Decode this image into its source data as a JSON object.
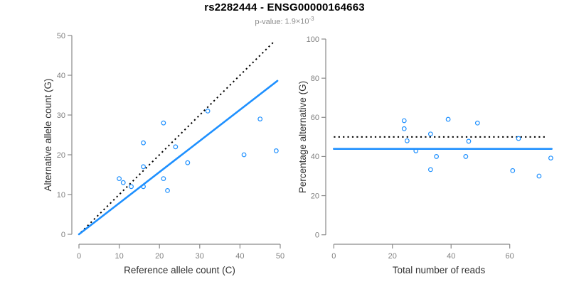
{
  "header": {
    "title": "rs2282444 - ENSG00000164663",
    "pvalue_label": "p-value:",
    "pvalue_base": "1.9×10",
    "pvalue_exponent": "-3"
  },
  "colors": {
    "accent_blue": "#1E90FF",
    "line_black": "#000000",
    "axis_gray": "#8a8a8a",
    "tick_label_gray": "#808080",
    "axis_title_color": "#333333",
    "title_color": "#000000",
    "subtitle_gray": "#8c8c8c",
    "background": "#ffffff"
  },
  "chart_data": [
    {
      "type": "scatter",
      "panel": "left",
      "xlabel": "Reference allele count (C)",
      "ylabel": "Alternative allele count (G)",
      "xlim": [
        0,
        50
      ],
      "ylim": [
        0,
        50
      ],
      "xticks": [
        0,
        10,
        20,
        30,
        40,
        50
      ],
      "yticks": [
        0,
        10,
        20,
        30,
        40,
        50
      ],
      "grid": false,
      "points": [
        [
          10,
          14
        ],
        [
          11,
          13
        ],
        [
          13,
          12
        ],
        [
          16,
          12
        ],
        [
          16,
          17
        ],
        [
          16,
          23
        ],
        [
          21,
          14
        ],
        [
          21,
          28
        ],
        [
          22,
          11
        ],
        [
          24,
          22
        ],
        [
          27,
          18
        ],
        [
          32,
          31
        ],
        [
          41,
          20
        ],
        [
          45,
          29
        ],
        [
          49,
          21
        ]
      ],
      "lines": [
        {
          "name": "identity-line",
          "style": "dotted",
          "color": "#000000",
          "from": [
            0.5,
            0.5
          ],
          "to": [
            48.6,
            48.6
          ]
        },
        {
          "name": "regression-line",
          "style": "solid",
          "color": "#1E90FF",
          "from": [
            0,
            0
          ],
          "to": [
            49.3,
            38.6
          ]
        }
      ]
    },
    {
      "type": "scatter",
      "panel": "right",
      "xlabel": "Total number of reads",
      "ylabel": "Percentage alternative (G)",
      "xlim": [
        0,
        74
      ],
      "ylim": [
        0,
        100
      ],
      "xticks": [
        0,
        20,
        40,
        60
      ],
      "yticks": [
        0,
        20,
        40,
        60,
        80,
        100
      ],
      "grid": false,
      "points": [
        [
          24,
          58.3
        ],
        [
          24,
          54.2
        ],
        [
          25,
          48.0
        ],
        [
          28,
          42.9
        ],
        [
          33,
          51.5
        ],
        [
          33,
          33.3
        ],
        [
          35,
          40.0
        ],
        [
          39,
          59.0
        ],
        [
          45,
          40.0
        ],
        [
          46,
          47.8
        ],
        [
          49,
          57.1
        ],
        [
          61,
          32.8
        ],
        [
          63,
          49.2
        ],
        [
          70,
          30.0
        ],
        [
          74,
          39.2
        ]
      ],
      "lines": [
        {
          "name": "expected-50pct-line",
          "style": "dotted",
          "color": "#000000",
          "from": [
            0,
            50
          ],
          "to": [
            72.5,
            50
          ]
        },
        {
          "name": "mean-percentage-line",
          "style": "solid",
          "color": "#1E90FF",
          "from": [
            0,
            43.9
          ],
          "to": [
            74.3,
            43.9
          ]
        }
      ]
    }
  ]
}
